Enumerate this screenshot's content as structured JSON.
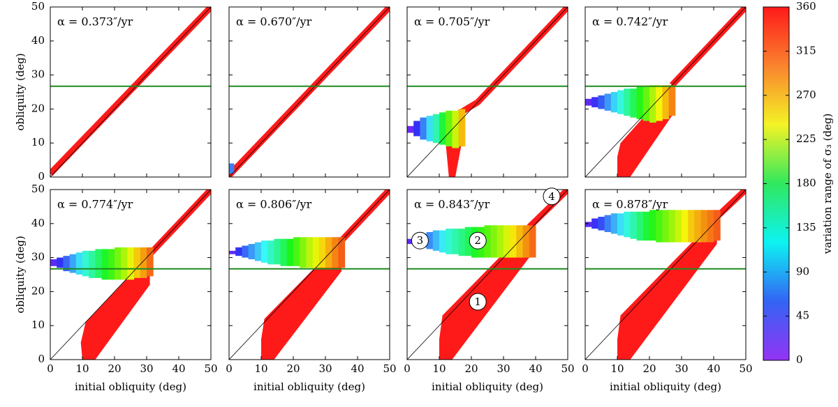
{
  "chart_data": [
    {
      "type": "scatter",
      "annotation": "α = 0.373″/yr",
      "ylabel": "obliquity (deg)",
      "xlim": [
        0,
        50
      ],
      "ylim": [
        0,
        50
      ],
      "xticks": [
        0,
        10,
        20,
        30,
        40,
        50
      ],
      "yticks": [
        0,
        10,
        20,
        30,
        40,
        50
      ],
      "hline": 26.7,
      "hline_color": "#1e8a1e",
      "color": "#ff1a1a",
      "diagonal": {
        "x": [
          0,
          50
        ],
        "y": [
          1,
          50
        ]
      }
    },
    {
      "type": "scatter",
      "annotation": "α = 0.670″/yr",
      "xlim": [
        0,
        50
      ],
      "ylim": [
        0,
        50
      ],
      "xticks": [
        0,
        10,
        20,
        30,
        40,
        50
      ],
      "yticks": [
        0,
        10,
        20,
        30,
        40,
        50
      ],
      "hline": 26.7,
      "hline_color": "#1e8a1e",
      "color": "#ff1a1a",
      "diagonal": {
        "x": [
          0,
          50
        ],
        "y": [
          0.5,
          50
        ]
      },
      "plateau": {
        "x": [
          0
        ],
        "ymin": [
          1
        ],
        "ymax": [
          4
        ],
        "c": [
          70
        ]
      }
    },
    {
      "type": "scatter",
      "annotation": "α = 0.705″/yr",
      "xlim": [
        0,
        50
      ],
      "ylim": [
        0,
        50
      ],
      "xticks": [
        0,
        10,
        20,
        30,
        40,
        50
      ],
      "yticks": [
        0,
        10,
        20,
        30,
        40,
        50
      ],
      "hline": 26.7,
      "hline_color": "#1e8a1e",
      "color": "#ff1a1a",
      "diagonal": {
        "x": [
          15,
          22,
          50
        ],
        "y": [
          18,
          22,
          50
        ]
      },
      "lower": {
        "x": [
          13,
          15,
          17,
          17,
          12,
          12
        ],
        "y": [
          0,
          0,
          10,
          19,
          19,
          10
        ]
      },
      "plateau": {
        "x": [
          0,
          2,
          4,
          6,
          8,
          10,
          12,
          14,
          16
        ],
        "ymin": [
          13,
          12,
          11,
          10.5,
          10,
          9.5,
          9,
          8.5,
          9
        ],
        "ymax": [
          15,
          16.5,
          17.5,
          18,
          18.5,
          19,
          19.5,
          19.5,
          20
        ],
        "c": [
          15,
          40,
          70,
          110,
          150,
          190,
          230,
          265,
          300
        ]
      }
    },
    {
      "type": "scatter",
      "annotation": "α = 0.742″/yr",
      "xlim": [
        0,
        50
      ],
      "ylim": [
        0,
        50
      ],
      "xticks": [
        0,
        10,
        20,
        30,
        40,
        50
      ],
      "yticks": [
        0,
        10,
        20,
        30,
        40,
        50
      ],
      "hline": 26.7,
      "hline_color": "#1e8a1e",
      "color": "#ff1a1a",
      "diagonal": {
        "x": [
          27,
          50
        ],
        "y": [
          27,
          50
        ]
      },
      "lower": {
        "x": [
          10,
          14,
          27,
          27,
          11,
          10
        ],
        "y": [
          0,
          0,
          18,
          27,
          10,
          6
        ]
      },
      "plateau": {
        "x": [
          0,
          2,
          4,
          6,
          8,
          10,
          12,
          14,
          16,
          18,
          20,
          22,
          24,
          26
        ],
        "ymin": [
          21,
          20.5,
          20,
          19.5,
          19,
          18.5,
          18,
          17.5,
          17,
          16.5,
          16,
          16.5,
          17,
          18
        ],
        "ymax": [
          23,
          23.5,
          24,
          24.5,
          25,
          25.5,
          26,
          26,
          26.5,
          26.5,
          27,
          27,
          27,
          27
        ],
        "c": [
          20,
          35,
          55,
          80,
          105,
          130,
          155,
          180,
          205,
          230,
          255,
          280,
          300,
          320
        ]
      }
    },
    {
      "type": "scatter",
      "annotation": "α = 0.774″/yr",
      "xlabel": "initial obliquity (deg)",
      "ylabel": "obliquity (deg)",
      "xlim": [
        0,
        50
      ],
      "ylim": [
        0,
        50
      ],
      "xticks": [
        0,
        10,
        20,
        30,
        40,
        50
      ],
      "yticks": [
        0,
        10,
        20,
        30,
        40,
        50
      ],
      "hline": 26.7,
      "hline_color": "#1e8a1e",
      "color": "#ff1a1a",
      "diagonal": {
        "x": [
          31,
          50
        ],
        "y": [
          31,
          50
        ]
      },
      "lower": {
        "x": [
          10,
          14,
          31,
          31,
          11,
          9.5
        ],
        "y": [
          0,
          0,
          22,
          31,
          11,
          5
        ]
      },
      "plateau": {
        "x": [
          0,
          2,
          4,
          6,
          8,
          10,
          12,
          14,
          16,
          18,
          20,
          22,
          24,
          26,
          28,
          30
        ],
        "ymin": [
          27.5,
          27,
          26,
          25.5,
          25,
          24.5,
          24,
          24,
          23.5,
          23.5,
          23.5,
          23.5,
          23.5,
          24,
          24,
          24.5
        ],
        "ymax": [
          29.5,
          30,
          30.5,
          31,
          31.5,
          32,
          32,
          32.5,
          32.5,
          32.5,
          33,
          33,
          33,
          33,
          33,
          33
        ],
        "c": [
          20,
          40,
          60,
          85,
          110,
          135,
          155,
          175,
          195,
          215,
          235,
          255,
          275,
          295,
          310,
          330
        ]
      }
    },
    {
      "type": "scatter",
      "annotation": "α = 0.806″/yr",
      "xlabel": "initial obliquity (deg)",
      "xlim": [
        0,
        50
      ],
      "ylim": [
        0,
        50
      ],
      "xticks": [
        0,
        10,
        20,
        30,
        40,
        50
      ],
      "yticks": [
        0,
        10,
        20,
        30,
        40,
        50
      ],
      "hline": 26.7,
      "hline_color": "#1e8a1e",
      "color": "#ff1a1a",
      "diagonal": {
        "x": [
          35,
          50
        ],
        "y": [
          35,
          50
        ]
      },
      "lower": {
        "x": [
          10,
          14,
          35,
          35,
          11,
          10
        ],
        "y": [
          0,
          0,
          26,
          35,
          12,
          6
        ]
      },
      "plateau": {
        "x": [
          0,
          2,
          4,
          6,
          8,
          10,
          12,
          14,
          16,
          18,
          20,
          22,
          24,
          26,
          28,
          30,
          32,
          34
        ],
        "ymin": [
          31,
          30.5,
          30,
          29.5,
          29,
          28.5,
          28,
          28,
          27.5,
          27.5,
          27.5,
          27,
          27,
          27,
          27,
          27,
          27,
          27
        ],
        "ymax": [
          32,
          33,
          33.5,
          34,
          34.5,
          35,
          35,
          35.5,
          35.5,
          35.5,
          36,
          36,
          36,
          36,
          36,
          36,
          36,
          36
        ],
        "c": [
          20,
          40,
          60,
          80,
          100,
          120,
          140,
          160,
          180,
          200,
          220,
          240,
          260,
          275,
          290,
          305,
          320,
          335
        ]
      }
    },
    {
      "type": "scatter",
      "annotation": "α = 0.843″/yr",
      "xlabel": "initial obliquity (deg)",
      "xlim": [
        0,
        50
      ],
      "ylim": [
        0,
        50
      ],
      "xticks": [
        0,
        10,
        20,
        30,
        40,
        50
      ],
      "yticks": [
        0,
        10,
        20,
        30,
        40,
        50
      ],
      "hline": 26.7,
      "hline_color": "#1e8a1e",
      "color": "#ff1a1a",
      "diagonal": {
        "x": [
          38,
          50
        ],
        "y": [
          39,
          50
        ]
      },
      "lower": {
        "x": [
          10,
          14,
          38,
          38,
          11,
          10
        ],
        "y": [
          0,
          0,
          30,
          39,
          13,
          6
        ]
      },
      "plateau": {
        "x": [
          0,
          2,
          4,
          6,
          8,
          10,
          12,
          14,
          16,
          18,
          20,
          22,
          24,
          26,
          28,
          30,
          32,
          34,
          36,
          38
        ],
        "ymin": [
          34,
          33.5,
          33,
          32.5,
          32,
          31.5,
          31,
          31,
          30.5,
          30.5,
          30,
          30,
          30,
          30,
          30,
          30,
          30,
          30,
          30,
          30
        ],
        "ymax": [
          35.5,
          36.5,
          37,
          37.5,
          38,
          38,
          38.5,
          38.5,
          38.5,
          39,
          39,
          39,
          39.5,
          39.5,
          39.5,
          39.5,
          39.5,
          39.5,
          39.5,
          39.5
        ],
        "c": [
          20,
          35,
          55,
          75,
          95,
          115,
          135,
          150,
          165,
          180,
          195,
          210,
          225,
          240,
          255,
          270,
          285,
          300,
          315,
          330
        ]
      },
      "markers": [
        {
          "label": "1",
          "x": 22,
          "y": 17
        },
        {
          "label": "2",
          "x": 22,
          "y": 35
        },
        {
          "label": "3",
          "x": 4,
          "y": 35
        },
        {
          "label": "4",
          "x": 45,
          "y": 48
        }
      ]
    },
    {
      "type": "scatter",
      "annotation": "α = 0.878″/yr",
      "xlabel": "initial obliquity (deg)",
      "xlim": [
        0,
        50
      ],
      "ylim": [
        0,
        50
      ],
      "xticks": [
        0,
        10,
        20,
        30,
        40,
        50
      ],
      "yticks": [
        0,
        10,
        20,
        30,
        40,
        50
      ],
      "hline": 26.7,
      "hline_color": "#1e8a1e",
      "color": "#ff1a1a",
      "diagonal": {
        "x": [
          41,
          50
        ],
        "y": [
          42,
          50
        ]
      },
      "lower": {
        "x": [
          10,
          14,
          41,
          41,
          11,
          10
        ],
        "y": [
          0,
          0,
          34,
          42,
          13,
          6
        ]
      },
      "plateau": {
        "x": [
          0,
          2,
          4,
          6,
          8,
          10,
          12,
          14,
          16,
          18,
          20,
          22,
          24,
          26,
          28,
          30,
          32,
          34,
          36,
          38,
          40
        ],
        "ymin": [
          39,
          38.5,
          38,
          37.5,
          37,
          36.5,
          36,
          35.5,
          35,
          35,
          35,
          34.5,
          34.5,
          34.5,
          34.5,
          34.5,
          34.5,
          34.5,
          34.5,
          34.5,
          35
        ],
        "ymax": [
          40.5,
          41.5,
          42,
          42.5,
          43,
          43,
          43.5,
          43.5,
          43.5,
          43.5,
          44,
          44,
          44,
          44,
          44,
          44,
          44,
          44,
          44,
          44,
          44
        ],
        "c": [
          20,
          35,
          50,
          70,
          90,
          110,
          130,
          150,
          170,
          190,
          205,
          220,
          235,
          250,
          265,
          280,
          295,
          305,
          315,
          325,
          335
        ]
      }
    }
  ],
  "colorbar": {
    "label": "variation range of σ₃ (deg)",
    "lim": [
      0,
      360
    ],
    "ticks": [
      0,
      45,
      90,
      135,
      180,
      225,
      270,
      315,
      360
    ]
  }
}
